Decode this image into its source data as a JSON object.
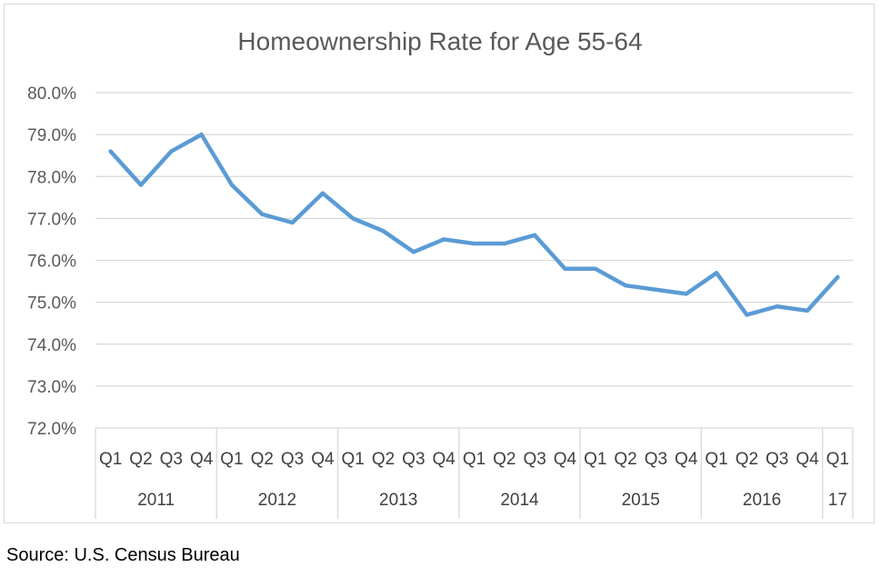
{
  "chart_data": {
    "type": "line",
    "title": "Homeownership Rate for Age 55-64",
    "xlabel": "",
    "ylabel": "",
    "ylim": [
      72,
      80
    ],
    "y_ticks": [
      "72.0%",
      "73.0%",
      "74.0%",
      "75.0%",
      "76.0%",
      "77.0%",
      "78.0%",
      "79.0%",
      "80.0%"
    ],
    "grid": true,
    "legend": "none",
    "categories": [
      {
        "quarter": "Q1",
        "year": "2011"
      },
      {
        "quarter": "Q2",
        "year": "2011"
      },
      {
        "quarter": "Q3",
        "year": "2011"
      },
      {
        "quarter": "Q4",
        "year": "2011"
      },
      {
        "quarter": "Q1",
        "year": "2012"
      },
      {
        "quarter": "Q2",
        "year": "2012"
      },
      {
        "quarter": "Q3",
        "year": "2012"
      },
      {
        "quarter": "Q4",
        "year": "2012"
      },
      {
        "quarter": "Q1",
        "year": "2013"
      },
      {
        "quarter": "Q2",
        "year": "2013"
      },
      {
        "quarter": "Q3",
        "year": "2013"
      },
      {
        "quarter": "Q4",
        "year": "2013"
      },
      {
        "quarter": "Q1",
        "year": "2014"
      },
      {
        "quarter": "Q2",
        "year": "2014"
      },
      {
        "quarter": "Q3",
        "year": "2014"
      },
      {
        "quarter": "Q4",
        "year": "2014"
      },
      {
        "quarter": "Q1",
        "year": "2015"
      },
      {
        "quarter": "Q2",
        "year": "2015"
      },
      {
        "quarter": "Q3",
        "year": "2015"
      },
      {
        "quarter": "Q4",
        "year": "2015"
      },
      {
        "quarter": "Q1",
        "year": "2016"
      },
      {
        "quarter": "Q2",
        "year": "2016"
      },
      {
        "quarter": "Q3",
        "year": "2016"
      },
      {
        "quarter": "Q4",
        "year": "2016"
      },
      {
        "quarter": "Q1",
        "year": "17"
      }
    ],
    "year_groups": [
      {
        "label": "2011",
        "count": 4
      },
      {
        "label": "2012",
        "count": 4
      },
      {
        "label": "2013",
        "count": 4
      },
      {
        "label": "2014",
        "count": 4
      },
      {
        "label": "2015",
        "count": 4
      },
      {
        "label": "2016",
        "count": 4
      },
      {
        "label": "17",
        "count": 1
      }
    ],
    "series": [
      {
        "color": "#5b9bd5",
        "values": [
          78.6,
          77.8,
          78.6,
          79.0,
          77.8,
          77.1,
          76.9,
          77.6,
          77.0,
          76.7,
          76.2,
          76.5,
          76.4,
          76.4,
          76.6,
          75.8,
          75.8,
          75.4,
          75.3,
          75.2,
          75.7,
          74.7,
          74.9,
          74.8,
          75.6
        ]
      }
    ]
  },
  "source_note": "Source: U.S. Census Bureau",
  "colors": {
    "line": "#5b9bd5",
    "grid": "#d9d9d9",
    "text": "#595959"
  }
}
